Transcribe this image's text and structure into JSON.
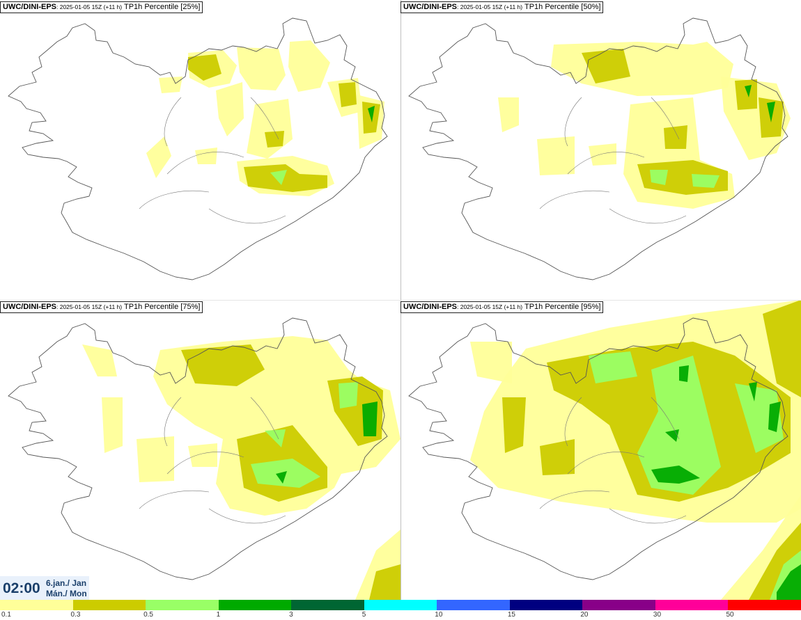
{
  "panels": [
    {
      "model": "UWC/DINI-EPS",
      "run": ": 2025-01-05 15Z (+11 h)",
      "product": " TP1h Percentile [25%]"
    },
    {
      "model": "UWC/DINI-EPS",
      "run": ": 2025-01-05 15Z (+11 h)",
      "product": " TP1h Percentile [50%]"
    },
    {
      "model": "UWC/DINI-EPS",
      "run": ": 2025-01-05 15Z (+11 h)",
      "product": " TP1h Percentile [75%]"
    },
    {
      "model": "UWC/DINI-EPS",
      "run": ": 2025-01-05 15Z (+11 h)",
      "product": " TP1h Percentile [95%]"
    }
  ],
  "valid_time": {
    "time": "02:00",
    "date_line1": "6.jan./ Jan",
    "date_line2": "Mán./ Mon"
  },
  "legend": {
    "ticks": [
      "0.1",
      "0.3",
      "0.5",
      "1",
      "3",
      "5",
      "10",
      "15",
      "20",
      "30",
      "50"
    ],
    "colors": [
      "#ffff99",
      "#cccc00",
      "#99ff66",
      "#00aa00",
      "#006633",
      "#00ffff",
      "#3366ff",
      "#000080",
      "#880088",
      "#ff0099",
      "#ff0000"
    ]
  },
  "precip_colors": {
    "light": "#ffff99",
    "medium": "#cccc00",
    "heavy": "#99ff66",
    "very_heavy": "#00aa00"
  }
}
